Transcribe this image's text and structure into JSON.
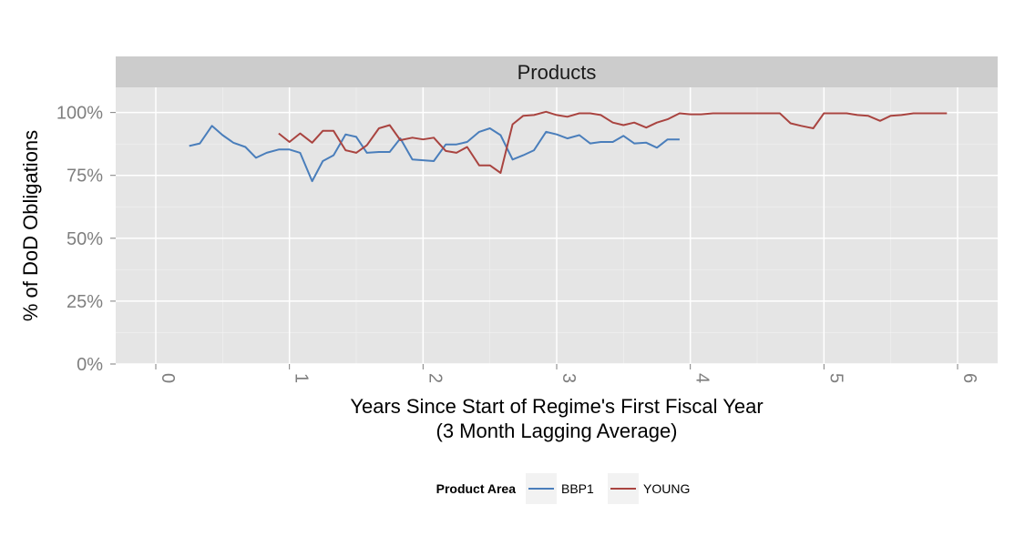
{
  "chart_data": {
    "type": "line",
    "facet": "Products",
    "xlabel": "Years Since Start of Regime's First Fiscal Year",
    "xlabel_sub": "(3 Month Lagging Average)",
    "ylabel": "% of DoD Obligations",
    "xlim": [
      -0.3,
      6.3
    ],
    "ylim": [
      0,
      1.1
    ],
    "x_ticks": [
      "0",
      "1",
      "2",
      "3",
      "4",
      "5",
      "6"
    ],
    "y_ticks": [
      "0%",
      "25%",
      "50%",
      "75%",
      "100%"
    ],
    "grid": true,
    "legend": {
      "title": "Product Area",
      "position": "bottom"
    },
    "series": [
      {
        "name": "BBP1",
        "color": "#4a7ebb",
        "x": [
          0.25,
          0.33,
          0.42,
          0.5,
          0.58,
          0.67,
          0.75,
          0.83,
          0.92,
          1.0,
          1.08,
          1.17,
          1.25,
          1.33,
          1.42,
          1.5,
          1.58,
          1.67,
          1.75,
          1.83,
          1.92,
          2.0,
          2.08,
          2.17,
          2.25,
          2.33,
          2.42,
          2.5,
          2.58,
          2.67,
          2.75,
          2.83,
          2.92,
          3.0,
          3.08,
          3.17,
          3.25,
          3.33,
          3.42,
          3.5,
          3.58,
          3.67,
          3.75,
          3.83,
          3.92
        ],
        "values": [
          0.867,
          0.877,
          0.947,
          0.91,
          0.88,
          0.863,
          0.82,
          0.84,
          0.853,
          0.853,
          0.84,
          0.727,
          0.807,
          0.83,
          0.913,
          0.903,
          0.84,
          0.843,
          0.843,
          0.897,
          0.813,
          0.81,
          0.807,
          0.873,
          0.873,
          0.883,
          0.923,
          0.937,
          0.91,
          0.813,
          0.83,
          0.85,
          0.923,
          0.913,
          0.897,
          0.91,
          0.877,
          0.883,
          0.883,
          0.907,
          0.877,
          0.88,
          0.86,
          0.893,
          0.893
        ]
      },
      {
        "name": "YOUNG",
        "color": "#a94440",
        "x": [
          0.92,
          1.0,
          1.08,
          1.17,
          1.25,
          1.33,
          1.42,
          1.5,
          1.58,
          1.67,
          1.75,
          1.83,
          1.92,
          2.0,
          2.08,
          2.17,
          2.25,
          2.33,
          2.42,
          2.5,
          2.58,
          2.67,
          2.75,
          2.83,
          2.92,
          3.0,
          3.08,
          3.17,
          3.25,
          3.33,
          3.42,
          3.5,
          3.58,
          3.67,
          3.75,
          3.83,
          3.92,
          4.0,
          4.08,
          4.17,
          4.25,
          4.33,
          4.42,
          4.5,
          4.58,
          4.67,
          4.75,
          4.83,
          4.92,
          5.0,
          5.08,
          5.17,
          5.25,
          5.33,
          5.42,
          5.5,
          5.58,
          5.67,
          5.75,
          5.83,
          5.92
        ],
        "values": [
          0.917,
          0.883,
          0.917,
          0.88,
          0.927,
          0.927,
          0.85,
          0.84,
          0.87,
          0.937,
          0.95,
          0.89,
          0.9,
          0.893,
          0.9,
          0.847,
          0.84,
          0.863,
          0.79,
          0.79,
          0.76,
          0.953,
          0.987,
          0.99,
          1.003,
          0.99,
          0.983,
          0.997,
          0.997,
          0.99,
          0.96,
          0.95,
          0.96,
          0.94,
          0.96,
          0.973,
          0.997,
          0.993,
          0.993,
          0.997,
          0.997,
          0.997,
          0.997,
          0.997,
          0.997,
          0.997,
          0.957,
          0.947,
          0.937,
          0.997,
          0.997,
          0.997,
          0.99,
          0.987,
          0.967,
          0.987,
          0.99,
          0.997,
          0.997,
          0.997,
          0.997
        ]
      }
    ]
  }
}
